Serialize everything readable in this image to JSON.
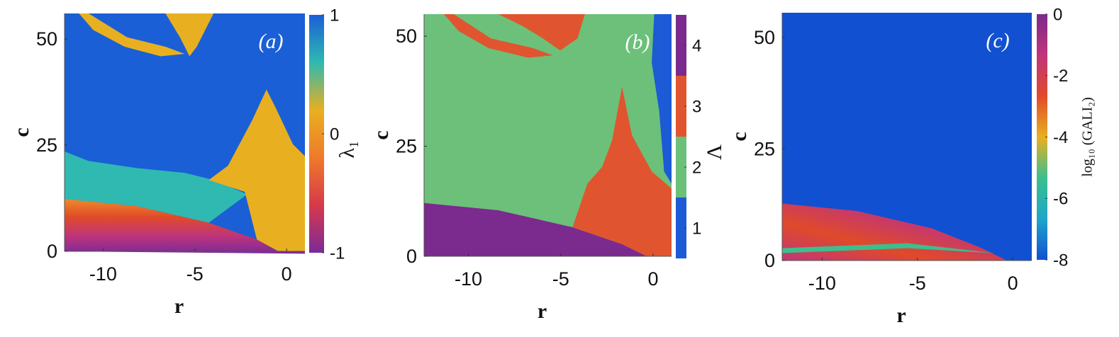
{
  "chart_data": [
    {
      "type": "heatmap",
      "panel_label": "(a)",
      "xlabel": "r",
      "ylabel": "c",
      "xlim": [
        -12.1,
        1
      ],
      "ylim": [
        0,
        56
      ],
      "xticks": [
        -10,
        -5,
        0
      ],
      "yticks": [
        0,
        25,
        50
      ],
      "colorbar_label": "λ₁",
      "clim": [
        -1,
        1
      ],
      "cticks": [
        -1,
        0,
        1
      ],
      "colormap": [
        "#7b2a9a",
        "#d7394a",
        "#ef7a2a",
        "#e8b020",
        "#2fb9b0",
        "#1a5fd6"
      ]
    },
    {
      "type": "heatmap",
      "panel_label": "(b)",
      "xlabel": "r",
      "ylabel": "c",
      "xlim": [
        -12.4,
        1
      ],
      "ylim": [
        0,
        55
      ],
      "xticks": [
        -10,
        -5,
        0
      ],
      "yticks": [
        0,
        25,
        50
      ],
      "colorbar_label": "Λ",
      "clim": [
        0.5,
        4.5
      ],
      "cticks": [
        1,
        2,
        3,
        4
      ],
      "colormap": [
        "#1c5ad6",
        "#6cc07a",
        "#e0552f",
        "#7b2a8e"
      ]
    },
    {
      "type": "heatmap",
      "panel_label": "(c)",
      "xlabel": "r",
      "ylabel": "c",
      "xlim": [
        -12.1,
        1
      ],
      "ylim": [
        0,
        55.5
      ],
      "xticks": [
        -10,
        -5,
        0
      ],
      "yticks": [
        0,
        25,
        50
      ],
      "colorbar_label": "log₁₀ (GALI₂)",
      "clim": [
        -8,
        0
      ],
      "cticks": [
        -8,
        -6,
        -4,
        -2,
        0
      ],
      "colormap": [
        "#1150d0",
        "#1fa6c8",
        "#3cbf8e",
        "#e8b020",
        "#e04a2a",
        "#c0357a",
        "#7b2a8e"
      ]
    }
  ]
}
